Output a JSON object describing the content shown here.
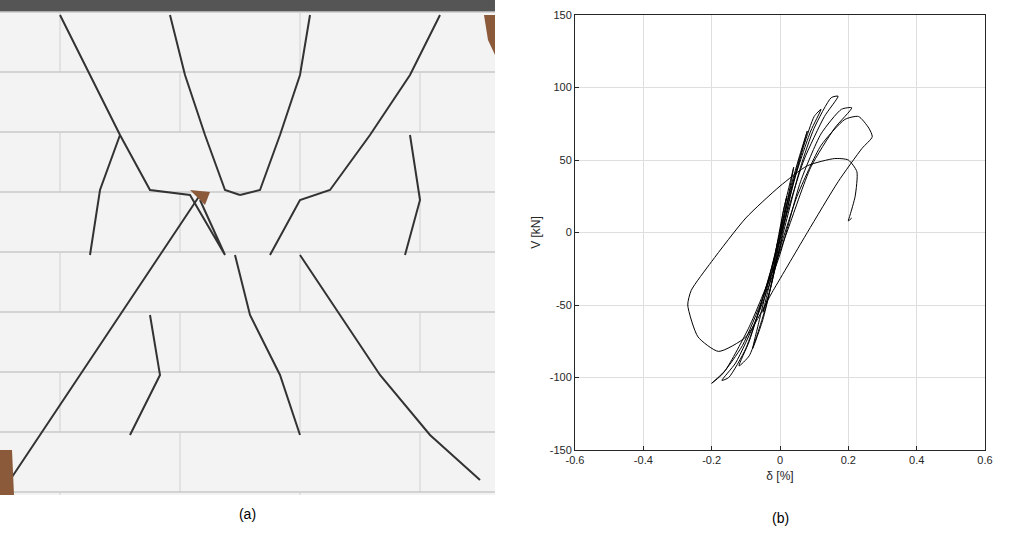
{
  "chart_data": [
    {
      "type": "image",
      "caption": "(a)"
    },
    {
      "type": "line",
      "caption": "(b)",
      "x_label": "δ [%]",
      "y_label": "V [kN]",
      "color": "#000000",
      "x": [
        0,
        0.01,
        0.02,
        0.01,
        -0.01,
        -0.02,
        -0.01,
        0.01,
        0.03,
        0.04,
        0.02,
        -0.01,
        -0.03,
        -0.05,
        -0.03,
        0,
        0.03,
        0.06,
        0.08,
        0.05,
        0.01,
        -0.03,
        -0.06,
        -0.08,
        -0.05,
        -0.01,
        0.03,
        0.07,
        0.1,
        0.12,
        0.09,
        0.04,
        0,
        -0.05,
        -0.09,
        -0.12,
        -0.09,
        -0.04,
        0.01,
        0.06,
        0.1,
        0.15,
        0.17,
        0.13,
        0.07,
        0.01,
        -0.05,
        -0.1,
        -0.15,
        -0.17,
        -0.13,
        -0.07,
        0,
        0.06,
        0.12,
        0.18,
        0.21,
        0.16,
        0.09,
        0.02,
        -0.05,
        -0.11,
        -0.17,
        -0.2,
        -0.16,
        -0.09,
        -0.02,
        0.05,
        0.12,
        0.19,
        0.23,
        0.26,
        0.27,
        0.24,
        0.17,
        0.08,
        -0.02,
        -0.1,
        -0.18,
        -0.24,
        -0.27,
        -0.26,
        -0.2,
        -0.1,
        0,
        0.08,
        0.16,
        0.2,
        0.225,
        0.22,
        0.205,
        0.2,
        0.21
      ],
      "values": [
        0,
        15,
        25,
        10,
        -15,
        -28,
        -10,
        15,
        35,
        45,
        20,
        -10,
        -35,
        -55,
        -40,
        -5,
        30,
        55,
        70,
        45,
        10,
        -30,
        -60,
        -80,
        -60,
        -20,
        25,
        60,
        80,
        85,
        70,
        35,
        -5,
        -45,
        -75,
        -92,
        -85,
        -50,
        0,
        45,
        72,
        93,
        94,
        80,
        50,
        5,
        -45,
        -80,
        -100,
        -102,
        -90,
        -60,
        -15,
        35,
        68,
        85,
        86,
        72,
        45,
        0,
        -45,
        -78,
        -98,
        -104,
        -95,
        -65,
        -25,
        25,
        60,
        78,
        80,
        72,
        66,
        58,
        35,
        0,
        -40,
        -72,
        -82,
        -72,
        -50,
        -40,
        -20,
        10,
        32,
        46,
        51,
        50,
        42,
        25,
        12,
        8,
        10
      ],
      "xlim": [
        -0.6,
        0.6
      ],
      "xticks": [
        -0.6,
        -0.4,
        -0.2,
        0,
        0.2,
        0.4,
        0.6
      ],
      "ylim": [
        -150,
        150
      ],
      "yticks": [
        -150,
        -100,
        -50,
        0,
        50,
        100,
        150
      ],
      "grid": true
    }
  ]
}
